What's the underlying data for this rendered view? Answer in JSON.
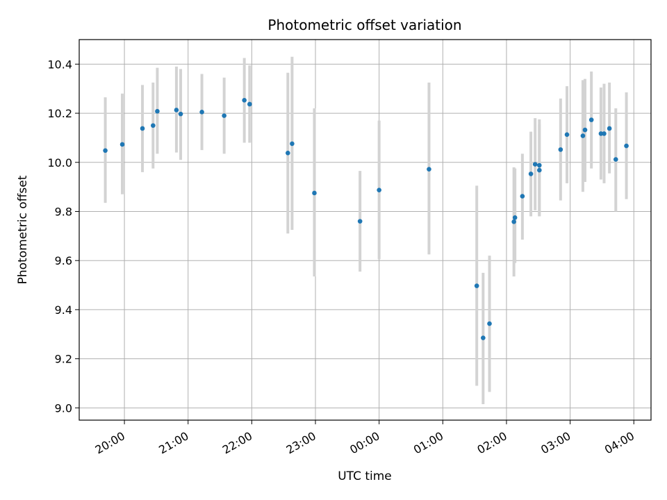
{
  "chart_data": {
    "type": "scatter",
    "title": "Photometric offset variation",
    "xlabel": "UTC time",
    "ylabel": "Photometric offset",
    "x_tick_labels": [
      "20:00",
      "21:00",
      "22:00",
      "23:00",
      "00:00",
      "01:00",
      "02:00",
      "03:00",
      "04:00"
    ],
    "x_ticks_hours": [
      20,
      21,
      22,
      23,
      24,
      25,
      26,
      27,
      28
    ],
    "y_ticks": [
      9.0,
      9.2,
      9.4,
      9.6,
      9.8,
      10.0,
      10.2,
      10.4
    ],
    "y_tick_labels": [
      "9.0",
      "9.2",
      "9.4",
      "9.6",
      "9.8",
      "10.0",
      "10.2",
      "10.4"
    ],
    "xlim_hours": [
      19.29,
      28.27
    ],
    "ylim": [
      8.95,
      10.5
    ],
    "grid": true,
    "colors": {
      "point": "#1f77b4",
      "errorbar": "#d3d3d3",
      "grid": "#b0b0b0"
    },
    "points": [
      {
        "time": "19:42",
        "y": 10.048,
        "ylow": 9.835,
        "yhigh": 10.265
      },
      {
        "time": "19:58",
        "y": 10.073,
        "ylow": 9.87,
        "yhigh": 10.28
      },
      {
        "time": "20:17",
        "y": 10.138,
        "ylow": 9.96,
        "yhigh": 10.315
      },
      {
        "time": "20:27",
        "y": 10.15,
        "ylow": 9.975,
        "yhigh": 10.325
      },
      {
        "time": "20:31",
        "y": 10.208,
        "ylow": 10.035,
        "yhigh": 10.385
      },
      {
        "time": "20:49",
        "y": 10.213,
        "ylow": 10.04,
        "yhigh": 10.39
      },
      {
        "time": "20:53",
        "y": 10.197,
        "ylow": 10.01,
        "yhigh": 10.38
      },
      {
        "time": "21:13",
        "y": 10.205,
        "ylow": 10.05,
        "yhigh": 10.36
      },
      {
        "time": "21:34",
        "y": 10.19,
        "ylow": 10.035,
        "yhigh": 10.345
      },
      {
        "time": "21:53",
        "y": 10.253,
        "ylow": 10.08,
        "yhigh": 10.425
      },
      {
        "time": "21:58",
        "y": 10.237,
        "ylow": 10.08,
        "yhigh": 10.395
      },
      {
        "time": "22:34",
        "y": 10.038,
        "ylow": 9.71,
        "yhigh": 10.365
      },
      {
        "time": "22:38",
        "y": 10.076,
        "ylow": 9.725,
        "yhigh": 10.43
      },
      {
        "time": "22:59",
        "y": 9.875,
        "ylow": 9.535,
        "yhigh": 10.22
      },
      {
        "time": "23:42",
        "y": 9.76,
        "ylow": 9.555,
        "yhigh": 9.965
      },
      {
        "time": "00:00",
        "y": 9.887,
        "ylow": 9.605,
        "yhigh": 10.17
      },
      {
        "time": "00:47",
        "y": 9.972,
        "ylow": 9.625,
        "yhigh": 10.325
      },
      {
        "time": "01:32",
        "y": 9.497,
        "ylow": 9.09,
        "yhigh": 9.905
      },
      {
        "time": "01:38",
        "y": 9.285,
        "ylow": 9.015,
        "yhigh": 9.55
      },
      {
        "time": "01:44",
        "y": 9.343,
        "ylow": 9.065,
        "yhigh": 9.62
      },
      {
        "time": "02:07",
        "y": 9.758,
        "ylow": 9.535,
        "yhigh": 9.98
      },
      {
        "time": "02:08",
        "y": 9.775,
        "ylow": 9.59,
        "yhigh": 9.975
      },
      {
        "time": "02:15",
        "y": 9.862,
        "ylow": 9.685,
        "yhigh": 10.035
      },
      {
        "time": "02:23",
        "y": 9.953,
        "ylow": 9.78,
        "yhigh": 10.125
      },
      {
        "time": "02:27",
        "y": 9.992,
        "ylow": 9.805,
        "yhigh": 10.18
      },
      {
        "time": "02:31",
        "y": 9.988,
        "ylow": 9.78,
        "yhigh": 10.175
      },
      {
        "time": "02:31",
        "y": 9.968,
        "ylow": 9.78,
        "yhigh": 10.155
      },
      {
        "time": "02:51",
        "y": 10.052,
        "ylow": 9.845,
        "yhigh": 10.26
      },
      {
        "time": "02:57",
        "y": 10.113,
        "ylow": 9.915,
        "yhigh": 10.31
      },
      {
        "time": "03:12",
        "y": 10.108,
        "ylow": 9.88,
        "yhigh": 10.335
      },
      {
        "time": "03:14",
        "y": 10.132,
        "ylow": 9.92,
        "yhigh": 10.34
      },
      {
        "time": "03:20",
        "y": 10.173,
        "ylow": 9.975,
        "yhigh": 10.37
      },
      {
        "time": "03:29",
        "y": 10.117,
        "ylow": 9.93,
        "yhigh": 10.305
      },
      {
        "time": "03:32",
        "y": 10.117,
        "ylow": 9.915,
        "yhigh": 10.32
      },
      {
        "time": "03:37",
        "y": 10.138,
        "ylow": 9.955,
        "yhigh": 10.325
      },
      {
        "time": "03:43",
        "y": 10.012,
        "ylow": 9.8,
        "yhigh": 10.22
      },
      {
        "time": "03:53",
        "y": 10.067,
        "ylow": 9.85,
        "yhigh": 10.285
      }
    ]
  }
}
